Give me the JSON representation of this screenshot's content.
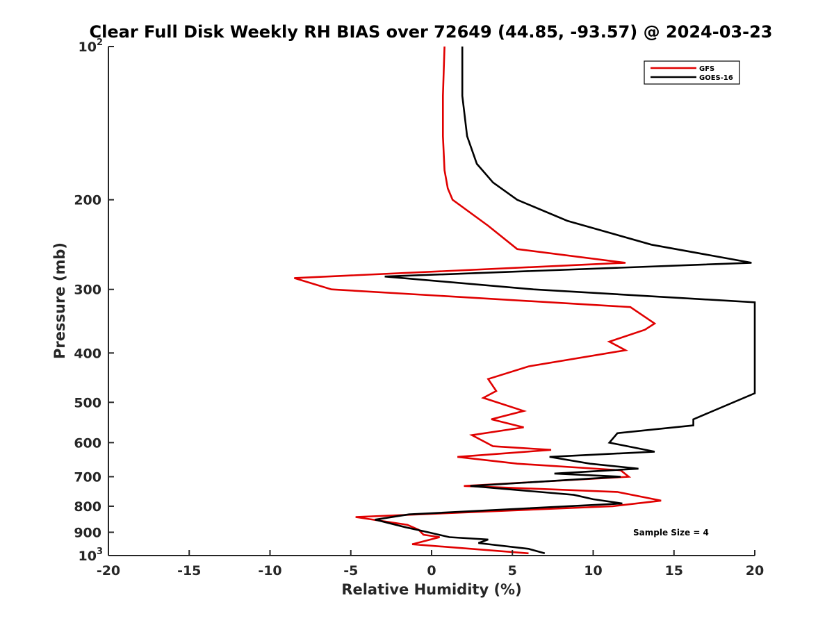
{
  "chart_data": {
    "type": "line",
    "title": "Clear Full Disk Weekly RH BIAS over 72649 (44.85, -93.57) @ 2024-03-23",
    "xlabel": "Relative Humidity (%)",
    "ylabel": "Pressure (mb)",
    "xlim": [
      -20,
      20
    ],
    "ylim": [
      100,
      1000
    ],
    "y_scale": "log",
    "y_reversed": true,
    "grid": false,
    "legend_position": "top-right",
    "x_ticks": [
      -20,
      -15,
      -10,
      -5,
      0,
      5,
      10,
      15,
      20
    ],
    "y_ticks": [
      {
        "value": 100,
        "base": "10",
        "exp": "2"
      },
      {
        "value": 200,
        "label": "200"
      },
      {
        "value": 300,
        "label": "300"
      },
      {
        "value": 400,
        "label": "400"
      },
      {
        "value": 500,
        "label": "500"
      },
      {
        "value": 600,
        "label": "600"
      },
      {
        "value": 700,
        "label": "700"
      },
      {
        "value": 800,
        "label": "800"
      },
      {
        "value": 900,
        "label": "900"
      },
      {
        "value": 1000,
        "base": "10",
        "exp": "3"
      }
    ],
    "series": [
      {
        "name": "GFS",
        "color": "#e00000",
        "points": [
          [
            0.8,
            100
          ],
          [
            0.7,
            125
          ],
          [
            0.7,
            150
          ],
          [
            0.8,
            175
          ],
          [
            1.0,
            190
          ],
          [
            1.3,
            200
          ],
          [
            3.5,
            225
          ],
          [
            5.3,
            250
          ],
          [
            12.0,
            266
          ],
          [
            -8.5,
            285
          ],
          [
            -6.2,
            300
          ],
          [
            12.3,
            325
          ],
          [
            13.8,
            350
          ],
          [
            13.2,
            360
          ],
          [
            11.0,
            380
          ],
          [
            12.0,
            395
          ],
          [
            6.0,
            425
          ],
          [
            3.5,
            450
          ],
          [
            4.0,
            475
          ],
          [
            3.2,
            490
          ],
          [
            5.7,
            520
          ],
          [
            3.7,
            540
          ],
          [
            5.7,
            560
          ],
          [
            2.5,
            580
          ],
          [
            3.8,
            610
          ],
          [
            7.4,
            620
          ],
          [
            1.6,
            640
          ],
          [
            5.3,
            660
          ],
          [
            11.7,
            680
          ],
          [
            12.2,
            700
          ],
          [
            2.0,
            730
          ],
          [
            11.5,
            750
          ],
          [
            14.2,
            780
          ],
          [
            11.2,
            800
          ],
          [
            -4.7,
            840
          ],
          [
            -1.5,
            870
          ],
          [
            -0.8,
            890
          ],
          [
            -0.5,
            910
          ],
          [
            0.5,
            920
          ],
          [
            -1.2,
            950
          ],
          [
            6.0,
            990
          ]
        ]
      },
      {
        "name": "GOES-16",
        "color": "#000000",
        "points": [
          [
            1.9,
            100
          ],
          [
            1.9,
            125
          ],
          [
            2.2,
            150
          ],
          [
            2.8,
            170
          ],
          [
            3.8,
            185
          ],
          [
            5.3,
            200
          ],
          [
            8.4,
            220
          ],
          [
            13.6,
            245
          ],
          [
            19.8,
            266
          ],
          [
            -2.9,
            283
          ],
          [
            6.3,
            300
          ],
          [
            20.0,
            318
          ],
          [
            20.0,
            450
          ],
          [
            20.0,
            480
          ],
          [
            16.2,
            540
          ],
          [
            16.2,
            555
          ],
          [
            11.5,
            575
          ],
          [
            11.0,
            600
          ],
          [
            13.8,
            625
          ],
          [
            7.3,
            640
          ],
          [
            9.8,
            660
          ],
          [
            12.8,
            675
          ],
          [
            7.6,
            690
          ],
          [
            11.7,
            700
          ],
          [
            2.4,
            730
          ],
          [
            8.8,
            760
          ],
          [
            10.0,
            775
          ],
          [
            11.8,
            790
          ],
          [
            -1.4,
            830
          ],
          [
            -3.5,
            850
          ],
          [
            -1.6,
            880
          ],
          [
            -0.2,
            900
          ],
          [
            1.1,
            920
          ],
          [
            3.5,
            930
          ],
          [
            2.9,
            945
          ],
          [
            6.0,
            970
          ],
          [
            7.0,
            990
          ]
        ]
      }
    ],
    "annotations": [
      {
        "text": "Sample Size = 4",
        "position": "bottom-right"
      }
    ]
  }
}
